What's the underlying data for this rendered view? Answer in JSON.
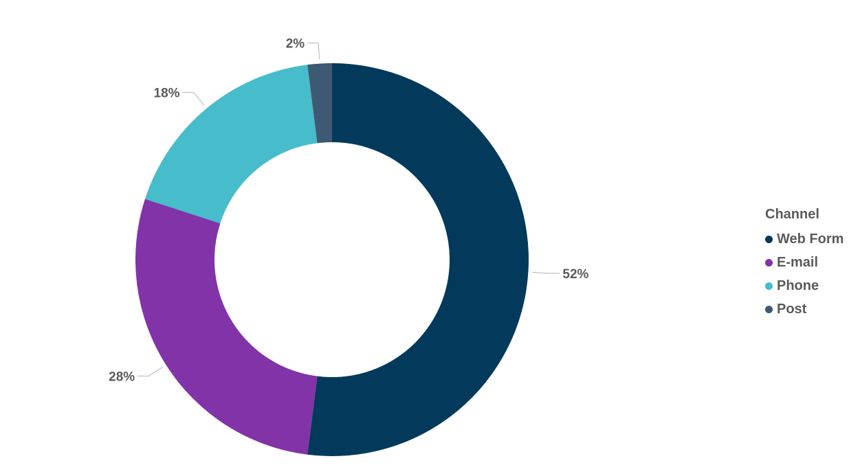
{
  "chart_data": {
    "type": "pie",
    "variant": "donut",
    "title": "",
    "legend_title": "Channel",
    "legend_position": "right",
    "categories": [
      "Web Form",
      "E-mail",
      "Phone",
      "Post"
    ],
    "values": [
      52,
      28,
      18,
      2
    ],
    "data_labels": [
      "52%",
      "28%",
      "18%",
      "2%"
    ],
    "colors": [
      "#033a5c",
      "#8133a7",
      "#47bccb",
      "#3d5a72"
    ]
  }
}
